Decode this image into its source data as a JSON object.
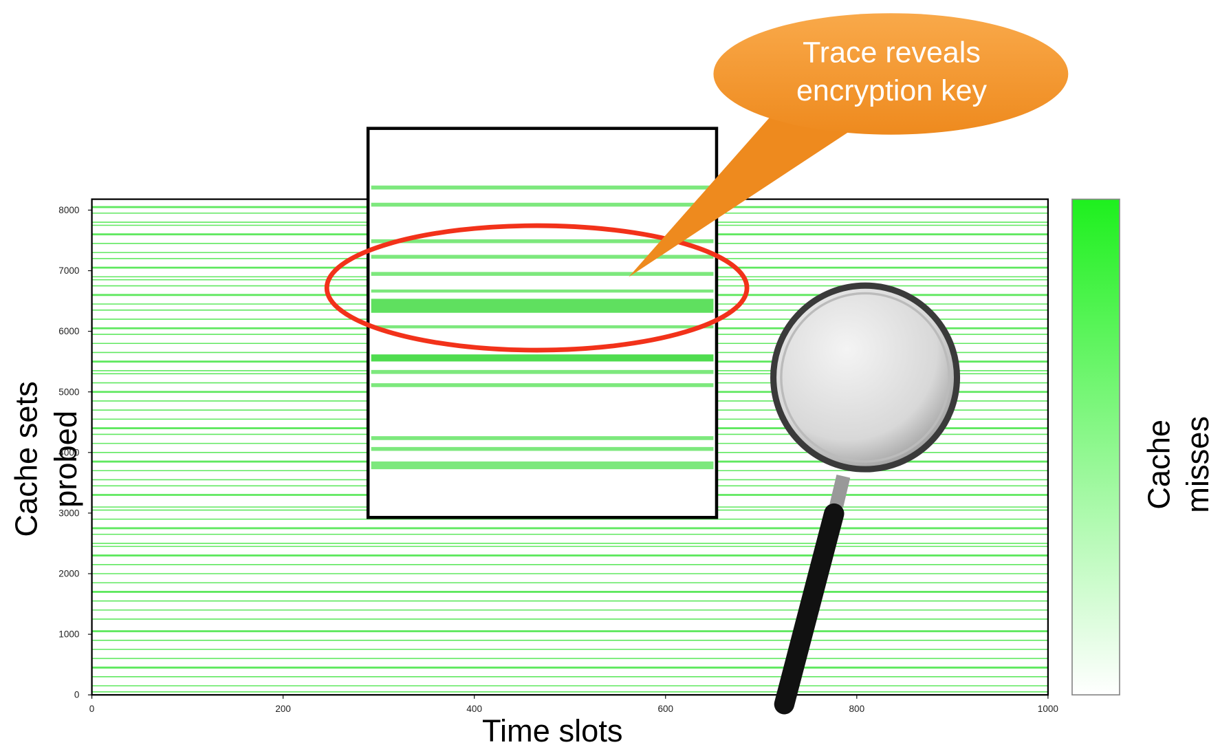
{
  "chart_data": {
    "type": "heatmap",
    "xlabel": "Time slots",
    "ylabel_lines": [
      "Cache sets",
      "probed"
    ],
    "colorbar_label_lines": [
      "Cache",
      "misses"
    ],
    "annotation_lines": [
      "Trace reveals",
      "encryption key"
    ],
    "xlim": [
      0,
      1000
    ],
    "xticks": [
      0,
      200,
      400,
      600,
      800,
      1000
    ],
    "ylim": [
      0,
      8180
    ],
    "yticks": [
      0,
      1000,
      2000,
      3000,
      4000,
      5000,
      6000,
      7000,
      8000
    ],
    "rows": [
      8050,
      7950,
      7800,
      7750,
      7600,
      7450,
      7300,
      7200,
      7050,
      6900,
      6850,
      6750,
      6600,
      6450,
      6350,
      6200,
      6050,
      5950,
      5800,
      5650,
      5500,
      5350,
      5300,
      5150,
      5000,
      4850,
      4700,
      4550,
      4400,
      4300,
      4150,
      4000,
      3850,
      3700,
      3550,
      3450,
      3300,
      3100,
      3050,
      2900,
      2750,
      2650,
      2500,
      2450,
      2300,
      2150,
      2000,
      1850,
      1700,
      1550,
      1400,
      1250,
      1050,
      900,
      750,
      600,
      450,
      300,
      150,
      50
    ],
    "color": "#5fe85f",
    "colorbar_colors": [
      "#1ef01e",
      "#ffffff"
    ]
  }
}
